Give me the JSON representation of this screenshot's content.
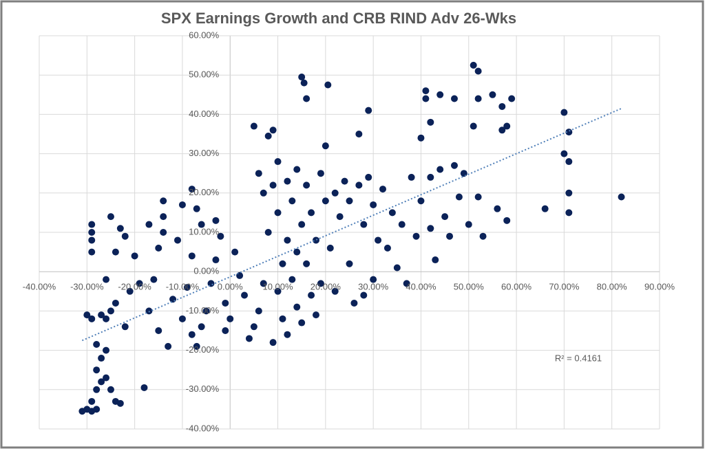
{
  "chart_data": {
    "type": "scatter",
    "title": "SPX Earnings Growth and CRB RIND Adv 26-Wks",
    "color": "#0b2258",
    "x": [
      -30,
      -31,
      -29,
      -28,
      -29,
      -28,
      -27,
      -26,
      -28,
      -27,
      -26,
      -28,
      -29,
      -30,
      -27,
      -26,
      -25,
      -24,
      -23,
      -25,
      -18,
      -29,
      -29,
      -29,
      -29,
      -25,
      -23,
      -22,
      -24,
      -26,
      -24,
      -22,
      -21,
      -19,
      -20,
      -17,
      -14,
      -14,
      -14,
      -15,
      -16,
      -17,
      -15,
      -13,
      -12,
      -11,
      -10,
      -8,
      -7,
      -6,
      -8,
      -9,
      -10,
      -8,
      -7,
      -6,
      -5,
      -4,
      -3,
      -2,
      -3,
      -1,
      -1,
      0,
      1,
      2,
      3,
      4,
      5,
      5,
      6,
      6,
      7,
      7,
      8,
      8,
      9,
      9,
      9,
      10,
      10,
      10,
      11,
      11,
      12,
      12,
      12,
      13,
      13,
      14,
      14,
      14,
      15,
      15.5,
      16,
      15,
      15,
      16,
      16,
      17,
      17,
      18,
      18,
      19,
      19,
      20,
      20.5,
      20,
      21,
      22,
      22,
      23,
      24,
      25,
      25,
      26,
      27,
      27,
      28,
      28,
      29,
      29,
      30,
      30,
      31,
      32,
      33,
      34,
      35,
      36,
      37,
      38,
      39,
      40,
      40,
      41,
      41,
      42,
      42,
      42,
      43,
      44,
      44,
      45,
      46,
      47,
      47,
      48,
      49,
      50,
      51,
      51,
      52,
      52,
      52,
      53,
      55,
      56,
      57,
      57,
      58,
      58,
      59,
      66,
      70,
      70,
      71,
      71,
      71,
      71,
      82
    ],
    "values": [
      -35,
      -35.5,
      -35.5,
      -35,
      -33,
      -30,
      -28,
      -27,
      -25,
      -22,
      -20,
      -18.5,
      -12,
      -11,
      -11,
      -12,
      -10,
      -33,
      -33.5,
      -30,
      -29.5,
      12,
      10,
      8,
      5,
      14,
      11,
      9,
      5,
      -2,
      -8,
      -14,
      -5,
      -3,
      4,
      12,
      18,
      14,
      10,
      6,
      -2,
      -10,
      -15,
      -19,
      -7,
      8,
      17,
      21,
      16,
      12,
      4,
      -4,
      -12,
      -16,
      -19,
      -14,
      -10,
      -3,
      3,
      9,
      13,
      -8,
      -15,
      -12,
      5,
      -1,
      -6,
      -17,
      -14,
      37,
      25,
      -10,
      20,
      -3,
      10,
      34.5,
      22,
      -18,
      36,
      -5,
      15,
      28,
      2,
      -12,
      8,
      23,
      -16,
      -2,
      18,
      5,
      26,
      -9,
      49.5,
      48,
      44,
      12,
      -13,
      2,
      22,
      -6,
      15,
      -11,
      8,
      25,
      -3,
      32,
      47.5,
      18,
      6,
      20,
      -5,
      14,
      23,
      2,
      18,
      -8,
      35,
      22,
      12,
      -6,
      41,
      24,
      -2,
      17,
      8,
      21,
      6,
      15,
      1,
      12,
      -3,
      24,
      9,
      34,
      18,
      44,
      46,
      38,
      24,
      11,
      3,
      45,
      26,
      14,
      9,
      27,
      44,
      19,
      25,
      12,
      37,
      52.5,
      51,
      44,
      19,
      9,
      45,
      16,
      42,
      36,
      13,
      37,
      44,
      16,
      40.5,
      30,
      35.5,
      28,
      20,
      15,
      19
    ],
    "trendline": {
      "x": [
        -31,
        82
      ],
      "values": [
        -17.5,
        41.5
      ]
    },
    "annotation": "R² = 0.4161",
    "xlim": [
      -40,
      90
    ],
    "ylim": [
      -40,
      60
    ],
    "grid": true,
    "xticks": [
      {
        "value": -40,
        "label": "-40.00%"
      },
      {
        "value": -30,
        "label": "-30.00%"
      },
      {
        "value": -20,
        "label": "-20.00%"
      },
      {
        "value": -10,
        "label": "-10.00%"
      },
      {
        "value": 0,
        "label": "0.00%"
      },
      {
        "value": 10,
        "label": "10.00%"
      },
      {
        "value": 20,
        "label": "20.00%"
      },
      {
        "value": 30,
        "label": "30.00%"
      },
      {
        "value": 40,
        "label": "40.00%"
      },
      {
        "value": 50,
        "label": "50.00%"
      },
      {
        "value": 60,
        "label": "60.00%"
      },
      {
        "value": 70,
        "label": "70.00%"
      },
      {
        "value": 80,
        "label": "80.00%"
      },
      {
        "value": 90,
        "label": "90.00%"
      }
    ],
    "yticks": [
      {
        "value": -40,
        "label": "-40.00%"
      },
      {
        "value": -30,
        "label": "-30.00%"
      },
      {
        "value": -20,
        "label": "-20.00%"
      },
      {
        "value": -10,
        "label": "-10.00%"
      },
      {
        "value": 0,
        "label": "0.00%"
      },
      {
        "value": 10,
        "label": "10.00%"
      },
      {
        "value": 20,
        "label": "20.00%"
      },
      {
        "value": 30,
        "label": "30.00%"
      },
      {
        "value": 40,
        "label": "40.00%"
      },
      {
        "value": 50,
        "label": "50.00%"
      },
      {
        "value": 60,
        "label": "60.00%"
      }
    ]
  }
}
